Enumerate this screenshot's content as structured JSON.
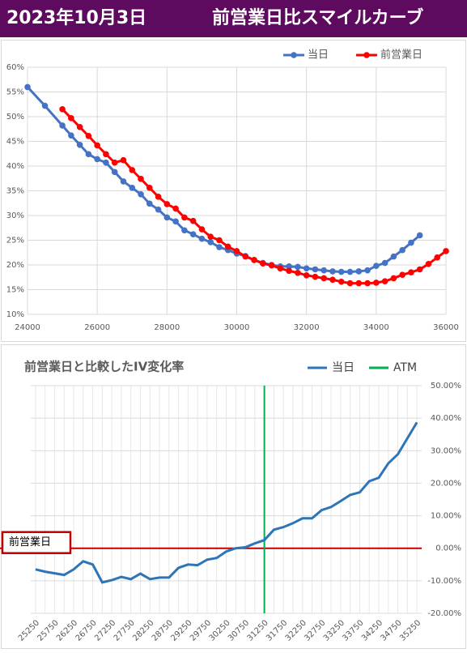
{
  "header": {
    "date": "2023年10月3日",
    "title": "前営業日比スマイルカーブ"
  },
  "chart_data": [
    {
      "type": "line",
      "xlim": [
        24000,
        36000
      ],
      "xticks": [
        24000,
        26000,
        28000,
        30000,
        32000,
        34000,
        36000
      ],
      "ylim": [
        10,
        60
      ],
      "yticks": [
        {
          "value": 10,
          "label": "10%"
        },
        {
          "value": 15,
          "label": "15%"
        },
        {
          "value": 20,
          "label": "20%"
        },
        {
          "value": 25,
          "label": "25%"
        },
        {
          "value": 30,
          "label": "30%"
        },
        {
          "value": 35,
          "label": "35%"
        },
        {
          "value": 40,
          "label": "40%"
        },
        {
          "value": 45,
          "label": "45%"
        },
        {
          "value": 50,
          "label": "50%"
        },
        {
          "value": 55,
          "label": "55%"
        },
        {
          "value": 60,
          "label": "60%"
        }
      ],
      "grid": true,
      "legend": "top",
      "series": [
        {
          "name": "当日",
          "color": "#4472c4",
          "x": [
            24000,
            24500,
            25000,
            25250,
            25500,
            25750,
            26000,
            26250,
            26500,
            26750,
            27000,
            27250,
            27500,
            27750,
            28000,
            28250,
            28500,
            28750,
            29000,
            29250,
            29500,
            29750,
            30000,
            30250,
            30500,
            30750,
            31000,
            31250,
            31500,
            31750,
            32000,
            32250,
            32500,
            32750,
            33000,
            33250,
            33500,
            33750,
            34000,
            34250,
            34500,
            34750,
            35000,
            35250
          ],
          "values": [
            56,
            52.2,
            48.2,
            46.2,
            44.3,
            42.4,
            41.4,
            40.7,
            38.8,
            36.9,
            35.6,
            34.3,
            32.4,
            31.2,
            29.6,
            28.8,
            27.0,
            26.2,
            25.3,
            24.6,
            23.6,
            23.0,
            22.3,
            21.8,
            21.0,
            20.4,
            20.0,
            19.7,
            19.7,
            19.6,
            19.3,
            19.1,
            18.9,
            18.7,
            18.6,
            18.6,
            18.7,
            18.9,
            19.8,
            20.4,
            21.7,
            23.0,
            24.5,
            26.0
          ]
        },
        {
          "name": "前営業日",
          "color": "#ff0000",
          "x": [
            25000,
            25250,
            25500,
            25750,
            26000,
            26250,
            26500,
            26750,
            27000,
            27250,
            27500,
            27750,
            28000,
            28250,
            28500,
            28750,
            29000,
            29250,
            29500,
            29750,
            30000,
            30250,
            30500,
            30750,
            31000,
            31250,
            31500,
            31750,
            32000,
            32250,
            32500,
            32750,
            33000,
            33250,
            33500,
            33750,
            34000,
            34250,
            34500,
            34750,
            35000,
            35250,
            35500,
            35750,
            36000
          ],
          "values": [
            51.5,
            49.7,
            47.9,
            46.1,
            44.2,
            42.4,
            40.7,
            41.2,
            39.2,
            37.4,
            35.6,
            33.8,
            32.3,
            31.4,
            29.6,
            28.9,
            27.2,
            25.7,
            25.0,
            23.7,
            22.8,
            21.7,
            21.0,
            20.3,
            19.9,
            19.3,
            18.8,
            18.4,
            17.9,
            17.6,
            17.3,
            17.0,
            16.6,
            16.3,
            16.3,
            16.3,
            16.4,
            16.7,
            17.3,
            18.0,
            18.5,
            19.1,
            20.2,
            21.5,
            22.8
          ]
        }
      ]
    },
    {
      "type": "line",
      "title": "前営業日と比較したIV変化率",
      "categories": [
        25250,
        null,
        25750,
        null,
        26250,
        null,
        26750,
        null,
        27250,
        null,
        27750,
        null,
        28250,
        null,
        28750,
        null,
        29250,
        null,
        29750,
        null,
        30250,
        null,
        30750,
        null,
        31250,
        null,
        31750,
        null,
        32250,
        null,
        32750,
        null,
        33250,
        null,
        33750,
        null,
        34250,
        null,
        34750,
        null,
        35250
      ],
      "ylim": [
        -20,
        50
      ],
      "yticks": [
        {
          "value": -20,
          "label": "-20.00%"
        },
        {
          "value": -10,
          "label": "-10.00%"
        },
        {
          "value": 0,
          "label": "0.00%"
        },
        {
          "value": 10,
          "label": "10.00%"
        },
        {
          "value": 20,
          "label": "20.00%"
        },
        {
          "value": 30,
          "label": "30.00%"
        },
        {
          "value": 40,
          "label": "40.00%"
        },
        {
          "value": 50,
          "label": "50.00%"
        }
      ],
      "grid": true,
      "legend": "top-right",
      "series": [
        {
          "name": "当日",
          "color": "#2e75b6",
          "values": [
            -6.5,
            -7.2,
            -7.7,
            -8.2,
            -6.5,
            -4.0,
            -5.0,
            -10.5,
            -9.8,
            -8.8,
            -9.5,
            -7.8,
            -9.5,
            -9.0,
            -9.0,
            -6.0,
            -5.0,
            -5.2,
            -3.5,
            -3.0,
            -1.0,
            0.0,
            0.3,
            1.5,
            2.5,
            5.7,
            6.5,
            7.7,
            9.2,
            9.2,
            11.7,
            12.7,
            14.5,
            16.4,
            17.2,
            20.6,
            21.7,
            26.1,
            28.9,
            33.8,
            38.7
          ]
        }
      ],
      "vlines": [
        {
          "name": "ATM",
          "color": "#00b050",
          "x": 31250
        }
      ],
      "hlines": [
        {
          "label": "前営業日",
          "value": 0,
          "color": "#c00000"
        }
      ]
    }
  ]
}
